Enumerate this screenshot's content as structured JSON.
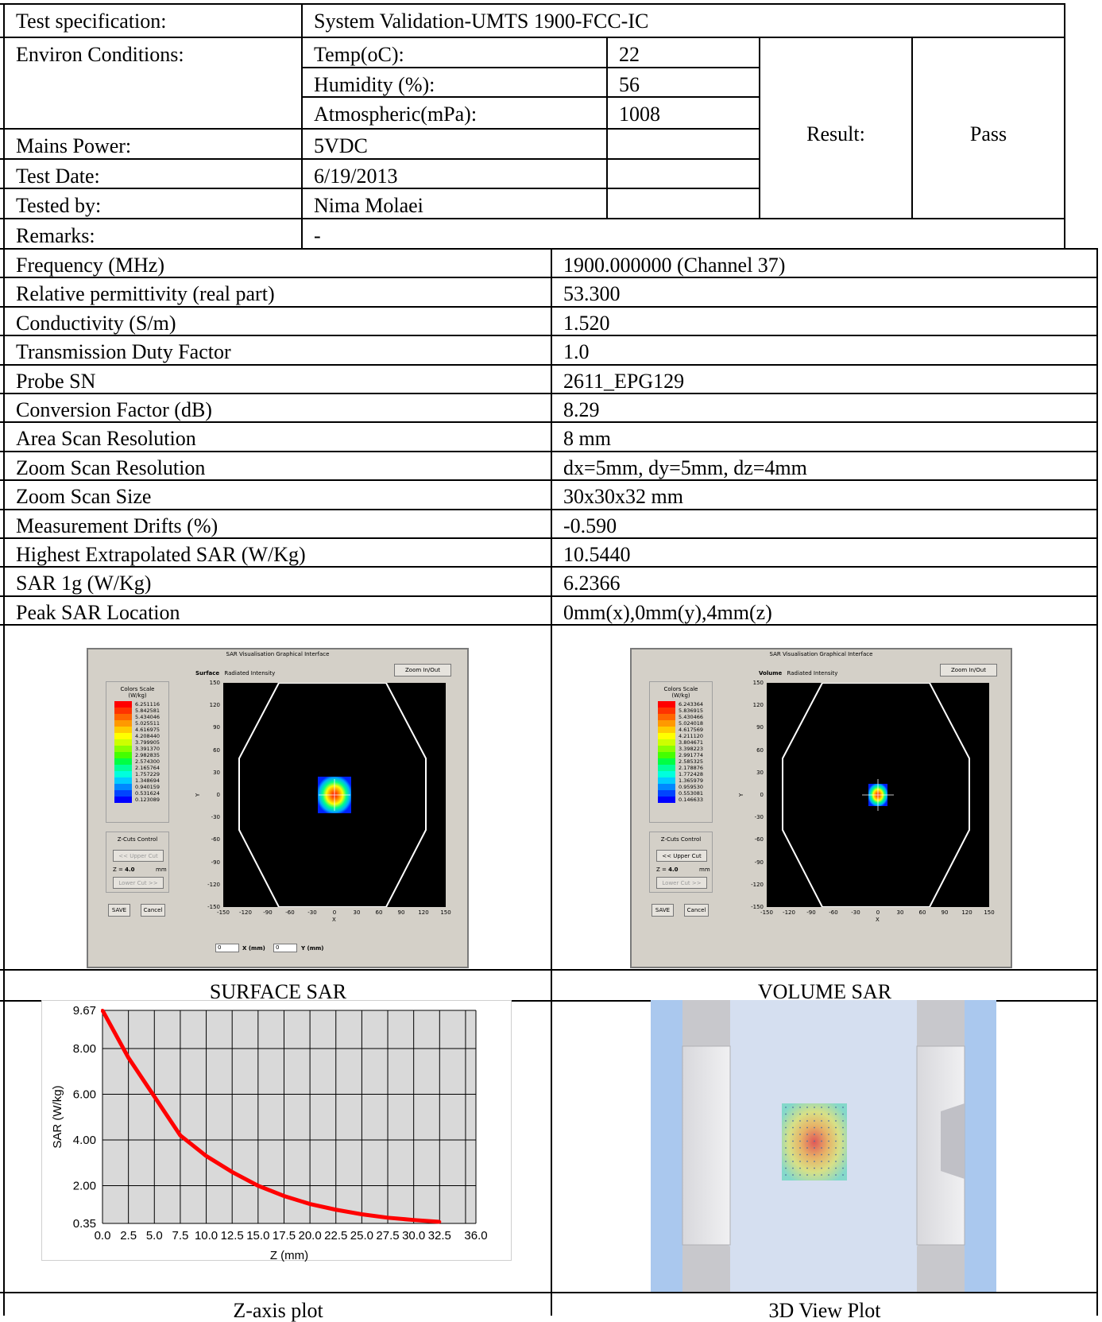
{
  "header": {
    "test_spec_label": "Test specification:",
    "test_spec_value": "System Validation-UMTS 1900-FCC-IC",
    "environ_label": "Environ Conditions:",
    "temp_label": "Temp(oC):",
    "temp_value": "22",
    "humidity_label": "Humidity (%):",
    "humidity_value": "56",
    "atm_label": "Atmospheric(mPa):",
    "atm_value": "1008",
    "result_label": "Result:",
    "result_value": "Pass",
    "mains_label": "Mains Power:",
    "mains_value": "5VDC",
    "date_label": "Test Date:",
    "date_value": "6/19/2013",
    "tested_label": "Tested by:",
    "tested_value": "Nima Molaei",
    "remarks_label": "Remarks:",
    "remarks_value": "-"
  },
  "params": [
    {
      "label": "Frequency (MHz)",
      "value": "1900.000000 (Channel 37)"
    },
    {
      "label": "Relative permittivity (real part)",
      "value": "53.300"
    },
    {
      "label": "Conductivity (S/m)",
      "value": "1.520"
    },
    {
      "label": "Transmission Duty Factor",
      "value": "1.0"
    },
    {
      "label": "Probe SN",
      "value": "2611_EPG129"
    },
    {
      "label": "Conversion Factor (dB)",
      "value": "8.29"
    },
    {
      "label": "Area Scan Resolution",
      "value": "8 mm"
    },
    {
      "label": "Zoom Scan Resolution",
      "value": "dx=5mm, dy=5mm, dz=4mm"
    },
    {
      "label": "Zoom Scan Size",
      "value": "30x30x32 mm"
    },
    {
      "label": "Measurement Drifts (%)",
      "value": "-0.590"
    },
    {
      "label": "Highest Extrapolated SAR (W/Kg)",
      "value": "10.5440"
    },
    {
      "label": "SAR 1g (W/Kg)",
      "value": "6.2366"
    },
    {
      "label": "Peak SAR Location",
      "value": "0mm(x),0mm(y),4mm(z)"
    }
  ],
  "captions": {
    "surface": "SURFACE SAR",
    "volume": "VOLUME SAR",
    "zaxis": "Z-axis plot",
    "view3d": "3D View Plot"
  },
  "surface_panel": {
    "title": "SAR Visualisation Graphical Interface",
    "mode": "Surface",
    "mode_sub": "Radiated Intensity",
    "zoom_btn": "Zoom In/Out",
    "scale_title": "Colors Scale",
    "scale_unit": "(W/kg)",
    "scale_values": [
      "6.251116",
      "5.842581",
      "5.434046",
      "5.025511",
      "4.616975",
      "4.208440",
      "3.799905",
      "3.391370",
      "2.982835",
      "2.574300",
      "2.165764",
      "1.757229",
      "1.348694",
      "0.940159",
      "0.531624",
      "0.123089"
    ],
    "zcuts_title": "Z-Cuts Control",
    "upper_btn": "<< Upper Cut",
    "z_label": "Z =",
    "z_value": "4.0",
    "z_unit": "mm",
    "lower_btn": "Lower Cut >>",
    "save_btn": "SAVE",
    "cancel_btn": "Cancel",
    "x_input": "0",
    "x_label": "X (mm)",
    "y_input": "0",
    "y_label": "Y (mm)",
    "axis_x": "X",
    "axis_y": "Y",
    "yticks": [
      "150",
      "120",
      "90",
      "60",
      "30",
      "0",
      "-30",
      "-60",
      "-90",
      "-120",
      "-150"
    ],
    "xticks": [
      "-150",
      "-120",
      "-90",
      "-60",
      "-30",
      "0",
      "30",
      "60",
      "90",
      "120",
      "150"
    ]
  },
  "volume_panel": {
    "title": "SAR Visualisation Graphical Interface",
    "mode": "Volume",
    "mode_sub": "Radiated Intensity",
    "zoom_btn": "Zoom In/Out",
    "scale_title": "Colors Scale",
    "scale_unit": "(W/kg)",
    "scale_values": [
      "6.243364",
      "5.836915",
      "5.430466",
      "5.024018",
      "4.617569",
      "4.211120",
      "3.804671",
      "3.398223",
      "2.991774",
      "2.585325",
      "2.178876",
      "1.772428",
      "1.365979",
      "0.959530",
      "0.553081",
      "0.146633"
    ],
    "zcuts_title": "Z-Cuts Control",
    "upper_btn": "<< Upper Cut",
    "z_label": "Z =",
    "z_value": "4.0",
    "z_unit": "mm",
    "lower_btn": "Lower Cut >>",
    "save_btn": "SAVE",
    "cancel_btn": "Cancel",
    "axis_x": "X",
    "axis_y": "Y",
    "yticks": [
      "150",
      "120",
      "90",
      "60",
      "30",
      "0",
      "-30",
      "-60",
      "-90",
      "-120",
      "-150"
    ],
    "xticks": [
      "-150",
      "-120",
      "-90",
      "-60",
      "-30",
      "0",
      "30",
      "60",
      "90",
      "120",
      "150"
    ]
  },
  "scale_colors": [
    "#ff0000",
    "#ff3300",
    "#ff6600",
    "#ff9900",
    "#ffcc00",
    "#ffff00",
    "#ccff00",
    "#88ff00",
    "#44ff00",
    "#00ff44",
    "#00ff99",
    "#00ffdd",
    "#00ccff",
    "#0088ff",
    "#0044ff",
    "#0000ff"
  ],
  "chart_data": {
    "type": "line",
    "xlabel": "Z (mm)",
    "ylabel": "SAR (W/kg)",
    "xlim": [
      0.0,
      36.0
    ],
    "ylim": [
      0.35,
      9.67
    ],
    "x_ticks": [
      "0.0",
      "2.5",
      "5.0",
      "7.5",
      "10.0",
      "12.5",
      "15.0",
      "17.5",
      "20.0",
      "22.5",
      "25.0",
      "27.5",
      "30.0",
      "32.5",
      "36.0"
    ],
    "y_ticks": [
      "9.67",
      "8.00",
      "6.00",
      "4.00",
      "2.00",
      "0.35"
    ],
    "series": [
      {
        "color": "#ff0000",
        "x": [
          0,
          2.5,
          5,
          7.5,
          10,
          12.5,
          15,
          17.5,
          20,
          22.5,
          25,
          27.5,
          30,
          32.5
        ],
        "y": [
          9.67,
          7.6,
          5.9,
          4.2,
          3.3,
          2.6,
          2.0,
          1.55,
          1.2,
          0.95,
          0.75,
          0.6,
          0.5,
          0.42
        ]
      }
    ]
  }
}
